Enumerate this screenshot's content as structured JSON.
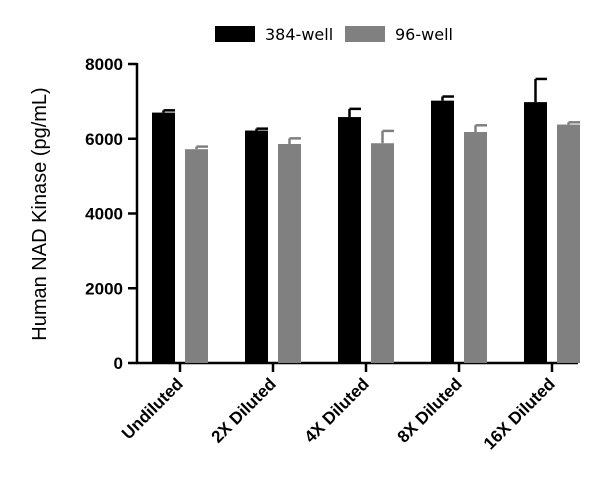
{
  "chart_data": {
    "type": "bar",
    "title": "",
    "xlabel": "",
    "ylabel": "Human NAD Kinase (pg/mL)",
    "ylim": [
      0,
      8000
    ],
    "yticks": [
      0,
      2000,
      4000,
      6000,
      8000
    ],
    "categories": [
      "Undiluted",
      "2X Diluted",
      "4X Diluted",
      "8X Diluted",
      "16X Diluted"
    ],
    "legend_position": "top",
    "grid": false,
    "series": [
      {
        "name": "384-well",
        "color": "#000000",
        "values": [
          6700,
          6220,
          6580,
          7020,
          6980
        ],
        "errors": [
          60,
          50,
          220,
          110,
          620
        ]
      },
      {
        "name": "96-well",
        "color": "#808080",
        "values": [
          5720,
          5860,
          5880,
          6180,
          6380
        ],
        "errors": [
          70,
          150,
          330,
          180,
          60
        ]
      }
    ]
  }
}
